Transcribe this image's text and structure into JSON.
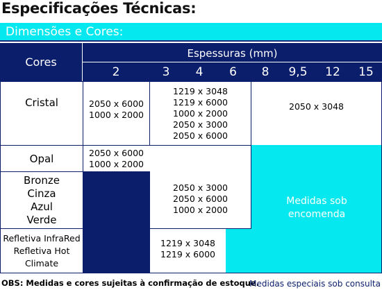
{
  "title": "Especificações Técnicas:",
  "section": "Dimensões e Cores:",
  "header": {
    "cores_label": "Cores",
    "espessuras_label": "Espessuras (mm)",
    "thicknesses": [
      "2",
      "3",
      "4",
      "6",
      "8",
      "9,5",
      "12",
      "15"
    ]
  },
  "rows": {
    "cristal": {
      "label": "Cristal",
      "col_2": [
        "2050 x 6000",
        "1000 x 2000"
      ],
      "col_3_6": [
        "1219 x 3048",
        "1219 x 6000",
        "1000 x 2000",
        "2050 x 3000",
        "2050 x 6000"
      ],
      "col_8_15": [
        "2050 x 3048"
      ]
    },
    "opal": {
      "label": "Opal",
      "col_2": [
        "2050 x 6000",
        "1000 x 2000"
      ]
    },
    "colors": {
      "labels": [
        "Bronze",
        "Cinza",
        "Azul",
        "Verde"
      ],
      "col_3_6": [
        "2050 x 3000",
        "2050 x 6000",
        "1000 x 2000"
      ]
    },
    "refletiva": {
      "labels": [
        "Refletiva InfraRed",
        "Refletiva Hot",
        "Climate"
      ],
      "col_3_4": [
        "1219 x 3048",
        "1219 x 6000"
      ]
    }
  },
  "sob_encomenda": [
    "Medidas sob",
    "encomenda"
  ],
  "footer": {
    "obs": "OBS: Medidas e cores sujeitas à confirmação de estoque.",
    "especiais": "Medidas especiais sob consulta"
  },
  "colors": {
    "navy": "#0b1e6c",
    "cyan": "#05e8f0"
  }
}
